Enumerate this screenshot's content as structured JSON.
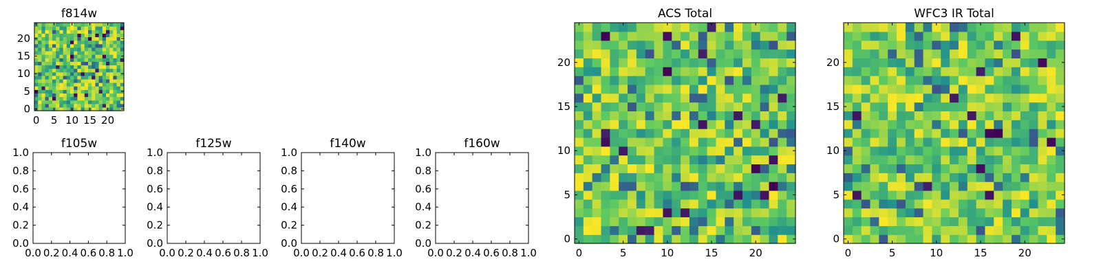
{
  "colors": {
    "background": "#ffffff",
    "axis": "#000000",
    "colormap": [
      "#440154",
      "#3b528b",
      "#21908d",
      "#5dc962",
      "#fde725"
    ]
  },
  "chart_data": [
    {
      "type": "heatmap",
      "title": "f814w",
      "grid_size": [
        25,
        25
      ],
      "xlim": [
        -0.5,
        24.5
      ],
      "ylim": [
        -0.5,
        24.5
      ],
      "xticks": [
        0,
        5,
        10,
        15,
        20
      ],
      "yticks": [
        0,
        5,
        10,
        15,
        20
      ],
      "xticklabels": [
        "0",
        "5",
        "10",
        "15",
        "20"
      ],
      "yticklabels": [
        "0",
        "5",
        "10",
        "15",
        "20"
      ],
      "seed": 814,
      "value_range": [
        0,
        1
      ]
    },
    {
      "type": "empty",
      "title": "f105w",
      "xlim": [
        0,
        1
      ],
      "ylim": [
        0,
        1
      ],
      "xticks": [
        0.0,
        0.2,
        0.4,
        0.6,
        0.8,
        1.0
      ],
      "yticks": [
        0.0,
        0.2,
        0.4,
        0.6,
        0.8,
        1.0
      ],
      "xticklabels": [
        "0.0",
        "0.2",
        "0.4",
        "0.6",
        "0.8",
        "1.0"
      ],
      "yticklabels": [
        "0.0",
        "0.2",
        "0.4",
        "0.6",
        "0.8",
        "1.0"
      ]
    },
    {
      "type": "empty",
      "title": "f125w",
      "xlim": [
        0,
        1
      ],
      "ylim": [
        0,
        1
      ],
      "xticks": [
        0.0,
        0.2,
        0.4,
        0.6,
        0.8,
        1.0
      ],
      "yticks": [
        0.0,
        0.2,
        0.4,
        0.6,
        0.8,
        1.0
      ],
      "xticklabels": [
        "0.0",
        "0.2",
        "0.4",
        "0.6",
        "0.8",
        "1.0"
      ],
      "yticklabels": [
        "0.0",
        "0.2",
        "0.4",
        "0.6",
        "0.8",
        "1.0"
      ]
    },
    {
      "type": "empty",
      "title": "f140w",
      "xlim": [
        0,
        1
      ],
      "ylim": [
        0,
        1
      ],
      "xticks": [
        0.0,
        0.2,
        0.4,
        0.6,
        0.8,
        1.0
      ],
      "yticks": [
        0.0,
        0.2,
        0.4,
        0.6,
        0.8,
        1.0
      ],
      "xticklabels": [
        "0.0",
        "0.2",
        "0.4",
        "0.6",
        "0.8",
        "1.0"
      ],
      "yticklabels": [
        "0.0",
        "0.2",
        "0.4",
        "0.6",
        "0.8",
        "1.0"
      ]
    },
    {
      "type": "empty",
      "title": "f160w",
      "xlim": [
        0,
        1
      ],
      "ylim": [
        0,
        1
      ],
      "xticks": [
        0.0,
        0.2,
        0.4,
        0.6,
        0.8,
        1.0
      ],
      "yticks": [
        0.0,
        0.2,
        0.4,
        0.6,
        0.8,
        1.0
      ],
      "xticklabels": [
        "0.0",
        "0.2",
        "0.4",
        "0.6",
        "0.8",
        "1.0"
      ],
      "yticklabels": [
        "0.0",
        "0.2",
        "0.4",
        "0.6",
        "0.8",
        "1.0"
      ]
    },
    {
      "type": "heatmap",
      "title": "ACS Total",
      "grid_size": [
        25,
        25
      ],
      "xlim": [
        -0.5,
        24.5
      ],
      "ylim": [
        -0.5,
        24.5
      ],
      "xticks": [
        0,
        5,
        10,
        15,
        20
      ],
      "yticks": [
        0,
        5,
        10,
        15,
        20
      ],
      "xticklabels": [
        "0",
        "5",
        "10",
        "15",
        "20"
      ],
      "yticklabels": [
        "0",
        "5",
        "10",
        "15",
        "20"
      ],
      "seed": 1234,
      "value_range": [
        0,
        1
      ]
    },
    {
      "type": "heatmap",
      "title": "WFC3 IR Total",
      "grid_size": [
        25,
        25
      ],
      "xlim": [
        -0.5,
        24.5
      ],
      "ylim": [
        -0.5,
        24.5
      ],
      "xticks": [
        0,
        5,
        10,
        15,
        20
      ],
      "yticks": [
        0,
        5,
        10,
        15,
        20
      ],
      "xticklabels": [
        "0",
        "5",
        "10",
        "15",
        "20"
      ],
      "yticklabels": [
        "0",
        "5",
        "10",
        "15",
        "20"
      ],
      "seed": 3160,
      "value_range": [
        0,
        1
      ]
    }
  ]
}
